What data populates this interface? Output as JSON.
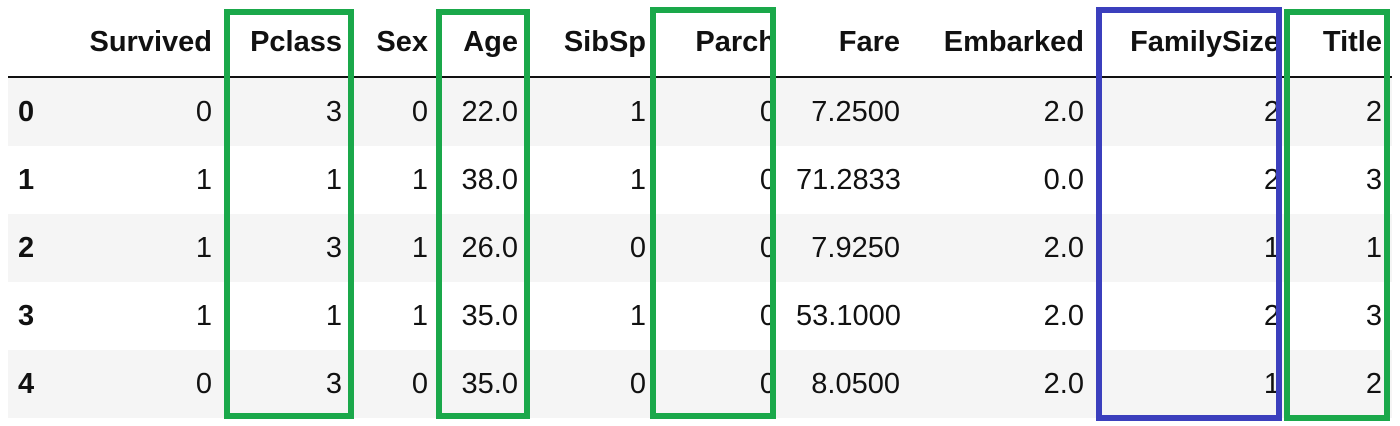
{
  "table": {
    "index_header": "",
    "columns": [
      "Survived",
      "Pclass",
      "Sex",
      "Age",
      "SibSp",
      "Parch",
      "Fare",
      "Embarked",
      "FamilySize",
      "Title"
    ],
    "rows": [
      {
        "index": "0",
        "values": [
          "0",
          "3",
          "0",
          "22.0",
          "1",
          "0",
          "7.2500",
          "2.0",
          "2",
          "2"
        ]
      },
      {
        "index": "1",
        "values": [
          "1",
          "1",
          "1",
          "38.0",
          "1",
          "0",
          "71.2833",
          "0.0",
          "2",
          "3"
        ]
      },
      {
        "index": "2",
        "values": [
          "1",
          "3",
          "1",
          "26.0",
          "0",
          "0",
          "7.9250",
          "2.0",
          "1",
          "1"
        ]
      },
      {
        "index": "3",
        "values": [
          "1",
          "1",
          "1",
          "35.0",
          "1",
          "0",
          "53.1000",
          "2.0",
          "2",
          "3"
        ]
      },
      {
        "index": "4",
        "values": [
          "0",
          "3",
          "0",
          "35.0",
          "0",
          "0",
          "8.0500",
          "2.0",
          "1",
          "2"
        ]
      }
    ]
  },
  "highlights": [
    {
      "column": "Pclass",
      "color": "#1aa84a"
    },
    {
      "column": "Age",
      "color": "#1aa84a"
    },
    {
      "column": "Parch",
      "color": "#1aa84a"
    },
    {
      "column": "FamilySize",
      "color": "#3b3fbd"
    },
    {
      "column": "Title",
      "color": "#1aa84a"
    }
  ],
  "colors": {
    "green": "#1aa84a",
    "blue": "#3b3fbd",
    "row_stripe": "#f5f5f5"
  }
}
